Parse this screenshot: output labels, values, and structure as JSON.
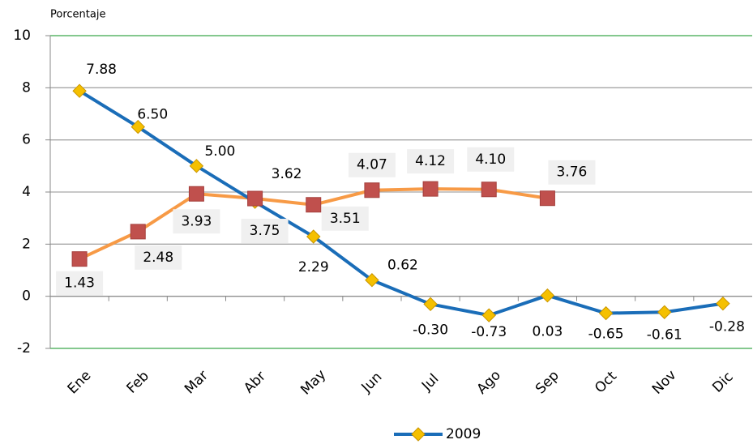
{
  "chart_data": {
    "type": "line",
    "y_label": "Porcentaje",
    "categories": [
      "Ene",
      "Feb",
      "Mar",
      "Abr",
      "May",
      "Jun",
      "Jul",
      "Ago",
      "Sep",
      "Oct",
      "Nov",
      "Dic"
    ],
    "series": [
      {
        "name": "2009",
        "color": "#1a6db8",
        "marker": "diamond",
        "marker_color": "#f5c000",
        "values": [
          7.88,
          6.5,
          5.0,
          3.62,
          2.29,
          0.62,
          -0.3,
          -0.73,
          0.03,
          -0.65,
          -0.61,
          -0.28
        ],
        "value_labels": [
          "7.88",
          "6.50",
          "5.00",
          "3.62",
          "2.29",
          "0.62",
          "-0.30",
          "-0.73",
          "0.03",
          "-0.65",
          "-0.61",
          "-0.28"
        ]
      },
      {
        "color": "#f79a46",
        "marker": "square",
        "marker_color": "#c0504d",
        "values": [
          1.43,
          2.48,
          3.93,
          3.75,
          3.51,
          4.07,
          4.12,
          4.1,
          3.76,
          null,
          null,
          null
        ],
        "value_labels": [
          "1.43",
          "2.48",
          "3.93",
          "3.75",
          "3.51",
          "4.07",
          "4.12",
          "4.10",
          "3.76",
          null,
          null,
          null
        ]
      }
    ],
    "ylim": [
      -2,
      10
    ],
    "yticks": [
      -2,
      0,
      2,
      4,
      6,
      8,
      10
    ],
    "grid": true,
    "legend": "bottom"
  }
}
